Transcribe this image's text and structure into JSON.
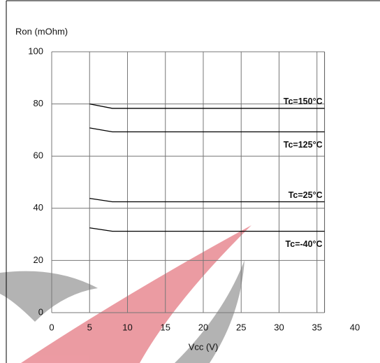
{
  "chart_data": {
    "type": "line",
    "ylabel": "Ron (mOhm)",
    "xlabel": "Vcc (V)",
    "xlim": [
      0,
      40
    ],
    "xticks": [
      0,
      5,
      10,
      15,
      20,
      25,
      30,
      35,
      40
    ],
    "ylim": [
      0,
      100
    ],
    "yticks": [
      0,
      20,
      40,
      60,
      80,
      100
    ],
    "grid": true,
    "series": [
      {
        "name": "Tc=150°C",
        "color": "#000000",
        "x": [
          5,
          8,
          36
        ],
        "values": [
          80,
          78.3,
          78.3
        ]
      },
      {
        "name": "Tc=125°C",
        "color": "#000000",
        "x": [
          5,
          8,
          36
        ],
        "values": [
          70.8,
          69.3,
          69.3
        ]
      },
      {
        "name": "Tc=25°C",
        "color": "#000000",
        "x": [
          5,
          8,
          36
        ],
        "values": [
          43.8,
          42.5,
          42.5
        ]
      },
      {
        "name": "Tc=-40°C",
        "color": "#000000",
        "x": [
          5,
          8,
          36
        ],
        "values": [
          32.5,
          31.2,
          31.2
        ]
      }
    ]
  }
}
